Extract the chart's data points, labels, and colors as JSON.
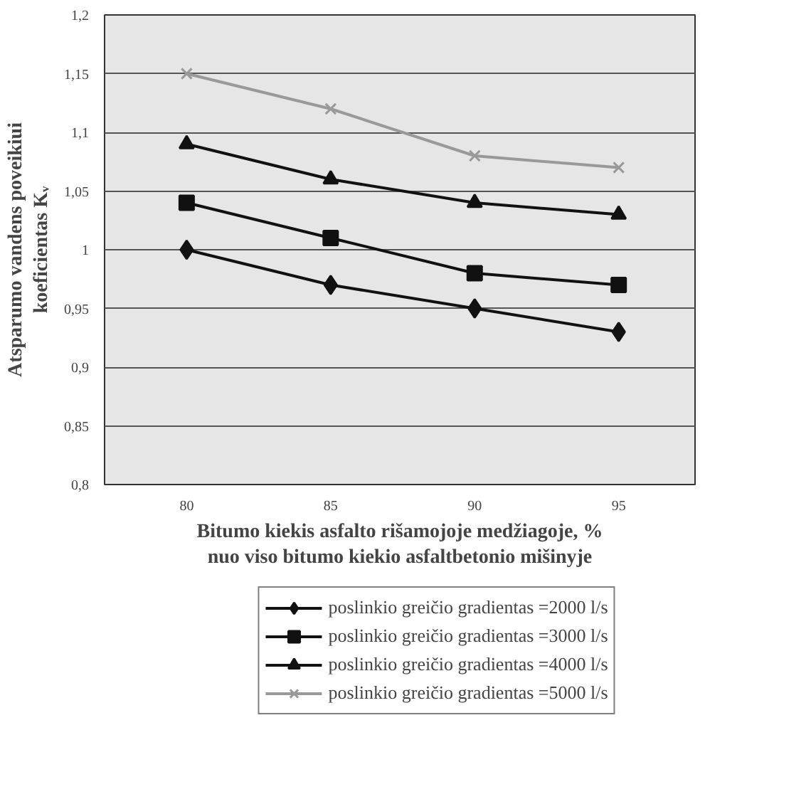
{
  "chart_data": {
    "type": "line",
    "xlabel": "Bitumo kiekis asfalto rišamojoje medžiagoje, % nuo viso bitumo kiekio asfaltbetonio mišinyje",
    "ylabel": "Atsparumo vandens poveikiui koeficientas Kᵥ",
    "categories": [
      "80",
      "85",
      "90",
      "95"
    ],
    "series": [
      {
        "name": "poslinkio greičio gradientas =2000 l/s",
        "color": "#111111",
        "marker": "diamond",
        "values": [
          1.0,
          0.97,
          0.95,
          0.93
        ]
      },
      {
        "name": "poslinkio greičio gradientas =3000 l/s",
        "color": "#111111",
        "marker": "square",
        "values": [
          1.04,
          1.01,
          0.98,
          0.97
        ]
      },
      {
        "name": "poslinkio greičio gradientas =4000 l/s",
        "color": "#111111",
        "marker": "triangle",
        "values": [
          1.09,
          1.06,
          1.04,
          1.03
        ]
      },
      {
        "name": "poslinkio greičio gradientas =5000 l/s",
        "color": "#999999",
        "marker": "cross",
        "values": [
          1.15,
          1.12,
          1.08,
          1.07
        ]
      }
    ],
    "ylim": [
      0.8,
      1.2
    ],
    "yticks": [
      {
        "value": 0.8,
        "label": "0,8"
      },
      {
        "value": 0.85,
        "label": "0,85"
      },
      {
        "value": 0.9,
        "label": "0,9"
      },
      {
        "value": 0.95,
        "label": "0,95"
      },
      {
        "value": 1,
        "label": "1"
      },
      {
        "value": 1.05,
        "label": "1,05"
      },
      {
        "value": 1.1,
        "label": "1,1"
      },
      {
        "value": 1.15,
        "label": "1,15"
      },
      {
        "value": 1.2,
        "label": "1,2"
      }
    ],
    "grid": "y",
    "legend": "bottom",
    "line_style": "solid"
  }
}
